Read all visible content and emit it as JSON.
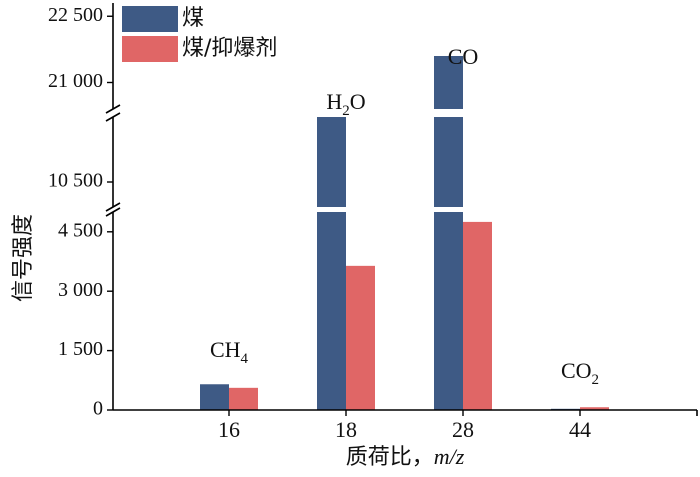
{
  "chart_data": {
    "type": "bar",
    "xlabel_prefix": "质荷比，",
    "xlabel_var": "m/z",
    "ylabel": "信号强度",
    "categories": [
      "16",
      "18",
      "28",
      "44"
    ],
    "series": [
      {
        "name": "煤",
        "color": "#3e5a85",
        "values": [
          650,
          14300,
          21600,
          30
        ]
      },
      {
        "name": "煤/抑爆剂",
        "color": "#e06666",
        "values": [
          560,
          3640,
          4750,
          70
        ]
      }
    ],
    "y_ticks": [
      "0",
      "1 500",
      "3 000",
      "4 500",
      "10 500",
      "21 000",
      "22 500"
    ],
    "y_segments": [
      [
        0,
        5000
      ],
      [
        10000,
        11800
      ],
      [
        20400,
        22800
      ]
    ],
    "annotations": [
      {
        "category": "16",
        "base": "CH",
        "sub": "4",
        "suffix": ""
      },
      {
        "category": "18",
        "base": "H",
        "sub": "2",
        "suffix": "O"
      },
      {
        "category": "28",
        "base": "CO",
        "sub": "",
        "suffix": ""
      },
      {
        "category": "44",
        "base": "CO",
        "sub": "2",
        "suffix": ""
      }
    ],
    "legend_position": "top-left",
    "grid": false
  }
}
